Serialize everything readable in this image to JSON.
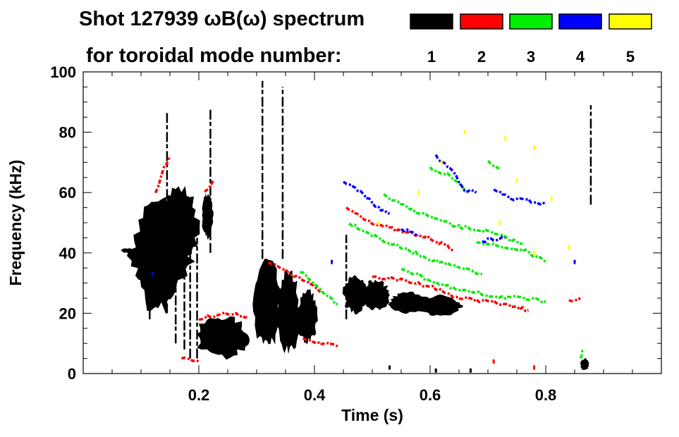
{
  "chart_data": {
    "type": "heatmap",
    "title": "Shot 127939 ωB(ω) spectrum",
    "subtitle": "for toroidal mode number:",
    "xlabel": "Time (s)",
    "ylabel": "Frequency (kHz)",
    "xlim": [
      0,
      1
    ],
    "ylim": [
      0,
      100
    ],
    "xticks": [
      0.2,
      0.4,
      0.6,
      0.8
    ],
    "xtick_labels": [
      "0.2",
      "0.4",
      "0.6",
      "0.8"
    ],
    "yticks": [
      0,
      20,
      40,
      60,
      80,
      100
    ],
    "ytick_labels": [
      "0",
      "20",
      "40",
      "60",
      "80",
      "100"
    ],
    "legend": {
      "placement": "top-right",
      "entries": [
        {
          "label": "1",
          "color": "#000000"
        },
        {
          "label": "2",
          "color": "#ff0000"
        },
        {
          "label": "3",
          "color": "#00ee00"
        },
        {
          "label": "4",
          "color": "#0000ff"
        },
        {
          "label": "5",
          "color": "#ffff00"
        }
      ]
    },
    "blobs": [
      {
        "mode": 1,
        "t": [
          0.08,
          0.19
        ],
        "f": [
          28,
          50
        ]
      },
      {
        "mode": 1,
        "t": [
          0.09,
          0.17
        ],
        "f": [
          20,
          58
        ]
      },
      {
        "mode": 1,
        "t": [
          0.13,
          0.2
        ],
        "f": [
          35,
          62
        ]
      },
      {
        "mode": 1,
        "t": [
          0.065,
          0.09
        ],
        "f": [
          40,
          41.5
        ]
      },
      {
        "mode": 1,
        "t": [
          0.205,
          0.225
        ],
        "f": [
          45,
          60
        ]
      },
      {
        "mode": 1,
        "t": [
          0.195,
          0.285
        ],
        "f": [
          5,
          19
        ]
      },
      {
        "mode": 1,
        "t": [
          0.295,
          0.34
        ],
        "f": [
          8,
          38
        ]
      },
      {
        "mode": 1,
        "t": [
          0.335,
          0.375
        ],
        "f": [
          7,
          34
        ]
      },
      {
        "mode": 1,
        "t": [
          0.37,
          0.405
        ],
        "f": [
          10,
          28
        ]
      },
      {
        "mode": 1,
        "t": [
          0.45,
          0.49
        ],
        "f": [
          20,
          33
        ]
      },
      {
        "mode": 1,
        "t": [
          0.48,
          0.53
        ],
        "f": [
          21,
          31
        ]
      },
      {
        "mode": 1,
        "t": [
          0.53,
          0.6
        ],
        "f": [
          20,
          27
        ]
      },
      {
        "mode": 1,
        "t": [
          0.58,
          0.655
        ],
        "f": [
          19,
          26
        ]
      },
      {
        "mode": 1,
        "t": [
          0.86,
          0.875
        ],
        "f": [
          1,
          5
        ]
      }
    ],
    "streaks": [
      {
        "mode": 1,
        "t": 0.115,
        "f": [
          18,
          45
        ]
      },
      {
        "mode": 1,
        "t": 0.145,
        "f": [
          20,
          87
        ]
      },
      {
        "mode": 1,
        "t": 0.16,
        "f": [
          10,
          55
        ]
      },
      {
        "mode": 1,
        "t": 0.175,
        "f": [
          8,
          50
        ]
      },
      {
        "mode": 1,
        "t": 0.185,
        "f": [
          5,
          48
        ]
      },
      {
        "mode": 1,
        "t": 0.197,
        "f": [
          5,
          45
        ]
      },
      {
        "mode": 1,
        "t": 0.22,
        "f": [
          40,
          88
        ]
      },
      {
        "mode": 1,
        "t": 0.31,
        "f": [
          38,
          97
        ]
      },
      {
        "mode": 1,
        "t": 0.345,
        "f": [
          38,
          95
        ]
      },
      {
        "mode": 1,
        "t": 0.455,
        "f": [
          18,
          46
        ]
      },
      {
        "mode": 1,
        "t": 0.878,
        "f": [
          56,
          89
        ]
      }
    ],
    "ridges": [
      {
        "mode": 2,
        "points": [
          [
            0.125,
            60
          ],
          [
            0.14,
            68
          ],
          [
            0.15,
            72
          ]
        ]
      },
      {
        "mode": 2,
        "points": [
          [
            0.2,
            18
          ],
          [
            0.24,
            20
          ],
          [
            0.285,
            19
          ]
        ]
      },
      {
        "mode": 2,
        "points": [
          [
            0.21,
            60
          ],
          [
            0.225,
            64
          ]
        ]
      },
      {
        "mode": 2,
        "points": [
          [
            0.32,
            37
          ],
          [
            0.36,
            33
          ],
          [
            0.39,
            30
          ],
          [
            0.41,
            27
          ]
        ]
      },
      {
        "mode": 2,
        "points": [
          [
            0.455,
            55
          ],
          [
            0.5,
            50
          ],
          [
            0.55,
            47
          ],
          [
            0.6,
            45
          ],
          [
            0.64,
            41
          ]
        ]
      },
      {
        "mode": 2,
        "points": [
          [
            0.5,
            32
          ],
          [
            0.55,
            31
          ],
          [
            0.6,
            29
          ],
          [
            0.65,
            25
          ],
          [
            0.7,
            24
          ],
          [
            0.77,
            21
          ]
        ]
      },
      {
        "mode": 2,
        "points": [
          [
            0.38,
            12
          ],
          [
            0.41,
            10
          ],
          [
            0.44,
            9
          ]
        ]
      },
      {
        "mode": 2,
        "points": [
          [
            0.17,
            5
          ],
          [
            0.2,
            4
          ]
        ]
      },
      {
        "mode": 2,
        "points": [
          [
            0.84,
            24
          ],
          [
            0.86,
            25
          ]
        ]
      },
      {
        "mode": 3,
        "points": [
          [
            0.375,
            34
          ],
          [
            0.41,
            28
          ],
          [
            0.44,
            23
          ]
        ]
      },
      {
        "mode": 3,
        "points": [
          [
            0.46,
            50
          ],
          [
            0.52,
            44
          ],
          [
            0.56,
            41
          ],
          [
            0.6,
            38
          ],
          [
            0.65,
            35
          ],
          [
            0.69,
            33
          ]
        ]
      },
      {
        "mode": 3,
        "points": [
          [
            0.52,
            59
          ],
          [
            0.56,
            55
          ],
          [
            0.6,
            52
          ],
          [
            0.64,
            49
          ],
          [
            0.7,
            47
          ],
          [
            0.76,
            43
          ]
        ]
      },
      {
        "mode": 3,
        "points": [
          [
            0.6,
            68
          ],
          [
            0.63,
            66
          ],
          [
            0.66,
            61
          ]
        ]
      },
      {
        "mode": 3,
        "points": [
          [
            0.55,
            35
          ],
          [
            0.6,
            31
          ],
          [
            0.64,
            28
          ],
          [
            0.7,
            26
          ],
          [
            0.75,
            25
          ],
          [
            0.8,
            24
          ]
        ]
      },
      {
        "mode": 3,
        "points": [
          [
            0.68,
            44
          ],
          [
            0.72,
            42
          ],
          [
            0.76,
            41
          ],
          [
            0.8,
            37
          ]
        ]
      },
      {
        "mode": 3,
        "points": [
          [
            0.7,
            70
          ],
          [
            0.72,
            68
          ]
        ]
      },
      {
        "mode": 3,
        "points": [
          [
            0.86,
            5
          ],
          [
            0.865,
            8
          ]
        ]
      },
      {
        "mode": 4,
        "points": [
          [
            0.45,
            64
          ],
          [
            0.48,
            60
          ],
          [
            0.51,
            55
          ],
          [
            0.53,
            53
          ]
        ]
      },
      {
        "mode": 4,
        "points": [
          [
            0.61,
            72
          ],
          [
            0.64,
            67
          ],
          [
            0.66,
            61
          ],
          [
            0.68,
            60
          ]
        ]
      },
      {
        "mode": 4,
        "points": [
          [
            0.71,
            61
          ],
          [
            0.74,
            58
          ],
          [
            0.78,
            57
          ],
          [
            0.8,
            56
          ]
        ]
      },
      {
        "mode": 4,
        "points": [
          [
            0.55,
            48
          ],
          [
            0.58,
            46
          ]
        ]
      },
      {
        "mode": 4,
        "points": [
          [
            0.69,
            44
          ],
          [
            0.73,
            45
          ]
        ]
      }
    ],
    "dots": [
      {
        "mode": 5,
        "t": 0.66,
        "f": 80
      },
      {
        "mode": 5,
        "t": 0.73,
        "f": 78
      },
      {
        "mode": 5,
        "t": 0.78,
        "f": 75
      },
      {
        "mode": 5,
        "t": 0.58,
        "f": 60
      },
      {
        "mode": 5,
        "t": 0.62,
        "f": 70
      },
      {
        "mode": 5,
        "t": 0.75,
        "f": 64
      },
      {
        "mode": 5,
        "t": 0.81,
        "f": 58
      },
      {
        "mode": 5,
        "t": 0.72,
        "f": 50
      },
      {
        "mode": 5,
        "t": 0.84,
        "f": 42
      },
      {
        "mode": 5,
        "t": 0.51,
        "f": 50
      },
      {
        "mode": 5,
        "t": 0.78,
        "f": 40
      },
      {
        "mode": 4,
        "t": 0.12,
        "f": 33
      },
      {
        "mode": 4,
        "t": 0.85,
        "f": 37
      },
      {
        "mode": 4,
        "t": 0.43,
        "f": 37
      },
      {
        "mode": 2,
        "t": 0.71,
        "f": 4
      },
      {
        "mode": 2,
        "t": 0.78,
        "f": 2
      },
      {
        "mode": 1,
        "t": 0.67,
        "f": 1
      },
      {
        "mode": 1,
        "t": 0.61,
        "f": 1
      },
      {
        "mode": 1,
        "t": 0.53,
        "f": 2
      }
    ]
  }
}
